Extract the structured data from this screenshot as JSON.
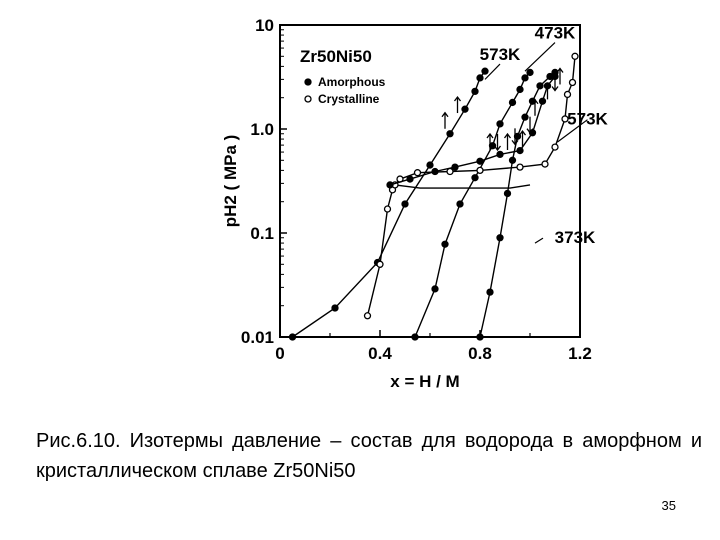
{
  "chart_data": {
    "type": "scatter",
    "title": "Zr50Ni50",
    "xlabel": "x = H / M",
    "ylabel": "pH2 ( MPa )",
    "xlim": [
      0,
      1.2
    ],
    "ylim": [
      0.01,
      10
    ],
    "yscale": "log",
    "x_ticks": [
      "0",
      "0.4",
      "0.8",
      "1.2"
    ],
    "y_ticks": [
      "0.01",
      "0.1",
      "1.0",
      "10"
    ],
    "legend": {
      "position": "top-left",
      "entries": [
        {
          "marker": "filled",
          "label": "Amorphous"
        },
        {
          "marker": "open",
          "label": "Crystalline"
        }
      ]
    },
    "annotations": [
      {
        "text": "573K",
        "x": 0.88,
        "y": 4.6
      },
      {
        "text": "473K",
        "x": 1.1,
        "y": 7.4
      },
      {
        "text": "573K",
        "x": 1.23,
        "y": 1.1
      },
      {
        "text": "373K",
        "x": 1.18,
        "y": 0.08
      }
    ],
    "series": [
      {
        "marker": "filled",
        "points": [
          [
            0.05,
            0.01
          ],
          [
            0.22,
            0.019
          ],
          [
            0.39,
            0.052
          ],
          [
            0.5,
            0.19
          ],
          [
            0.6,
            0.45
          ],
          [
            0.68,
            0.9
          ],
          [
            0.74,
            1.55
          ],
          [
            0.78,
            2.3
          ],
          [
            0.8,
            3.1
          ],
          [
            0.82,
            3.6
          ]
        ]
      },
      {
        "marker": "filled",
        "points": [
          [
            0.54,
            0.01
          ],
          [
            0.62,
            0.029
          ],
          [
            0.66,
            0.078
          ],
          [
            0.72,
            0.19
          ],
          [
            0.78,
            0.34
          ],
          [
            0.85,
            0.69
          ],
          [
            0.88,
            1.12
          ],
          [
            0.93,
            1.8
          ],
          [
            0.96,
            2.4
          ],
          [
            0.98,
            3.1
          ],
          [
            1.0,
            3.5
          ]
        ]
      },
      {
        "marker": "filled",
        "points": [
          [
            0.8,
            0.01
          ],
          [
            0.84,
            0.027
          ],
          [
            0.88,
            0.09
          ],
          [
            0.91,
            0.24
          ],
          [
            0.93,
            0.5
          ],
          [
            0.95,
            0.85
          ],
          [
            0.98,
            1.3
          ],
          [
            1.01,
            1.85
          ],
          [
            1.04,
            2.6
          ],
          [
            1.08,
            3.2
          ],
          [
            1.1,
            3.5
          ]
        ]
      },
      {
        "marker": "open",
        "points": [
          [
            0.35,
            0.016
          ],
          [
            0.4,
            0.05
          ],
          [
            0.43,
            0.17
          ],
          [
            0.45,
            0.26
          ],
          [
            0.46,
            0.29
          ],
          [
            0.48,
            0.33
          ],
          [
            0.55,
            0.38
          ],
          [
            0.68,
            0.39
          ],
          [
            0.8,
            0.4
          ],
          [
            0.96,
            0.43
          ],
          [
            1.06,
            0.46
          ],
          [
            1.1,
            0.67
          ],
          [
            1.14,
            1.25
          ],
          [
            1.15,
            2.15
          ],
          [
            1.17,
            2.8
          ],
          [
            1.18,
            5.0
          ]
        ]
      },
      {
        "marker": "filled",
        "points": [
          [
            0.44,
            0.29
          ],
          [
            0.52,
            0.33
          ],
          [
            0.62,
            0.39
          ],
          [
            0.7,
            0.43
          ],
          [
            0.8,
            0.49
          ],
          [
            0.88,
            0.57
          ],
          [
            0.96,
            0.62
          ],
          [
            1.01,
            0.92
          ],
          [
            1.05,
            1.85
          ],
          [
            1.07,
            2.6
          ],
          [
            1.1,
            3.2
          ]
        ]
      }
    ],
    "curves": [
      [
        [
          0.46,
          0.29
        ],
        [
          0.56,
          0.27
        ],
        [
          0.68,
          0.27
        ],
        [
          0.8,
          0.27
        ],
        [
          0.92,
          0.27
        ],
        [
          1.0,
          0.29
        ]
      ]
    ],
    "arrows": [
      {
        "x": 0.66,
        "y": 1.2,
        "dir": "up"
      },
      {
        "x": 0.71,
        "y": 1.7,
        "dir": "up"
      },
      {
        "x": 0.84,
        "y": 0.75,
        "dir": "up"
      },
      {
        "x": 0.87,
        "y": 0.75,
        "dir": "down"
      },
      {
        "x": 0.91,
        "y": 0.75,
        "dir": "up"
      },
      {
        "x": 0.94,
        "y": 0.85,
        "dir": "down"
      },
      {
        "x": 0.97,
        "y": 0.8,
        "dir": "up"
      },
      {
        "x": 1.0,
        "y": 1.1,
        "dir": "down"
      },
      {
        "x": 1.02,
        "y": 1.6,
        "dir": "up"
      },
      {
        "x": 1.07,
        "y": 2.3,
        "dir": "up"
      },
      {
        "x": 1.1,
        "y": 2.8,
        "dir": "down"
      },
      {
        "x": 1.12,
        "y": 3.2,
        "dir": "up"
      }
    ]
  },
  "caption": "Рис.6.10. Изотермы давление – состав для водорода в аморфном и кристаллическом сплаве Zr50Ni50",
  "page_number": "35"
}
